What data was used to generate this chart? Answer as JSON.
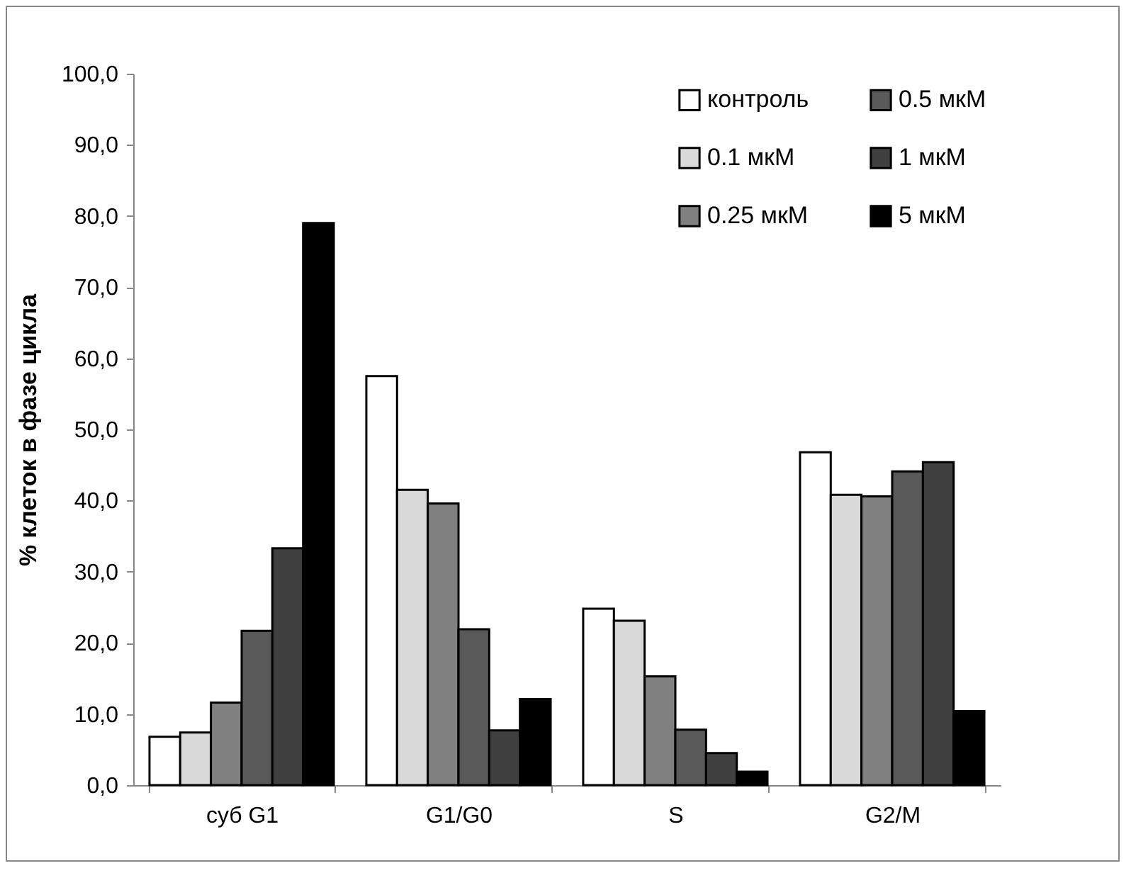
{
  "chart_data": {
    "type": "bar",
    "ylabel": "% клеток в фазе цикла",
    "categories": [
      "суб G1",
      "G1/G0",
      "S",
      "G2/M"
    ],
    "series": [
      {
        "name": "контроль",
        "color": "#ffffff",
        "values": [
          6.8,
          57.5,
          24.8,
          46.8
        ]
      },
      {
        "name": "0.1 мкМ",
        "color": "#d9d9d9",
        "values": [
          7.4,
          41.5,
          23.1,
          40.8
        ]
      },
      {
        "name": "0.25 мкМ",
        "color": "#808080",
        "values": [
          11.6,
          39.6,
          15.3,
          40.6
        ]
      },
      {
        "name": "0.5 мкМ",
        "color": "#595959",
        "values": [
          21.7,
          21.9,
          7.8,
          44.1
        ]
      },
      {
        "name": "1 мкМ",
        "color": "#404040",
        "values": [
          33.3,
          7.7,
          4.5,
          45.4
        ]
      },
      {
        "name": "5 мкМ",
        "color": "#000000",
        "values": [
          79.0,
          12.1,
          1.9,
          10.4
        ]
      }
    ],
    "ylim": [
      0,
      100
    ],
    "yticks": [
      {
        "value": 0,
        "label": "0,0"
      },
      {
        "value": 10,
        "label": "10,0"
      },
      {
        "value": 20,
        "label": "20,0"
      },
      {
        "value": 30,
        "label": "30,0"
      },
      {
        "value": 40,
        "label": "40,0"
      },
      {
        "value": 50,
        "label": "50,0"
      },
      {
        "value": 60,
        "label": "60,0"
      },
      {
        "value": 70,
        "label": "70,0"
      },
      {
        "value": 80,
        "label": "80,0"
      },
      {
        "value": 90,
        "label": "90,0"
      },
      {
        "value": 100,
        "label": "100,0"
      }
    ],
    "legend": "top right",
    "grid": false
  }
}
